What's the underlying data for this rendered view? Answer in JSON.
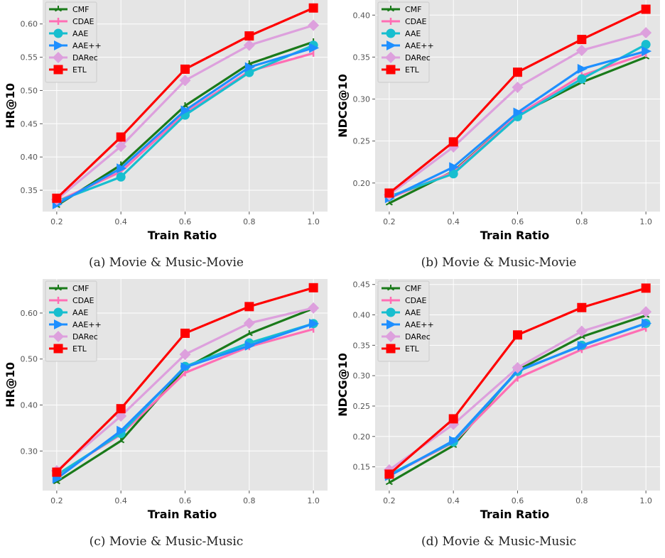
{
  "colors": {
    "CMF": "#1a7a1a",
    "CDAE": "#ff6eb4",
    "AAE": "#17becf",
    "AAE++": "#1e8fff",
    "DARec": "#dda0dd",
    "ETL": "#ff0000",
    "background": "#e5e5e5",
    "grid": "#ffffff"
  },
  "chart_data": [
    {
      "type": "line",
      "caption": "(a) Movie & Music-Movie",
      "xlabel": "Train Ratio",
      "ylabel": "HR@10",
      "x": [
        0.2,
        0.4,
        0.6,
        0.8,
        1.0
      ],
      "x_ticks": [
        "0.2",
        "0.4",
        "0.6",
        "0.8",
        "1.0"
      ],
      "y_ticks": [
        "0.35",
        "0.40",
        "0.45",
        "0.50",
        "0.55",
        "0.60"
      ],
      "y_tick_values": [
        0.35,
        0.4,
        0.45,
        0.5,
        0.55,
        0.6
      ],
      "ylim": [
        0.318,
        0.636
      ],
      "legend_position": "top-left",
      "grid": true,
      "series": [
        {
          "name": "CMF",
          "values": [
            0.327,
            0.388,
            0.477,
            0.54,
            0.573
          ]
        },
        {
          "name": "CDAE",
          "values": [
            0.333,
            0.378,
            0.466,
            0.529,
            0.556
          ]
        },
        {
          "name": "AAE",
          "values": [
            0.333,
            0.37,
            0.463,
            0.527,
            0.568
          ]
        },
        {
          "name": "AAE++",
          "values": [
            0.329,
            0.383,
            0.47,
            0.535,
            0.564
          ]
        },
        {
          "name": "DARec",
          "values": [
            0.336,
            0.416,
            0.515,
            0.568,
            0.598
          ]
        },
        {
          "name": "ETL",
          "values": [
            0.338,
            0.43,
            0.532,
            0.582,
            0.624
          ]
        }
      ]
    },
    {
      "type": "line",
      "caption": "(b) Movie & Music-Movie",
      "xlabel": "Train Ratio",
      "ylabel": "NDCG@10",
      "x": [
        0.2,
        0.4,
        0.6,
        0.8,
        1.0
      ],
      "x_ticks": [
        "0.2",
        "0.4",
        "0.6",
        "0.8",
        "1.0"
      ],
      "y_ticks": [
        "0.20",
        "0.25",
        "0.30",
        "0.35",
        "0.40"
      ],
      "y_tick_values": [
        0.2,
        0.25,
        0.3,
        0.35,
        0.4
      ],
      "ylim": [
        0.166,
        0.418
      ],
      "legend_position": "top-left",
      "grid": true,
      "series": [
        {
          "name": "CMF",
          "values": [
            0.176,
            0.214,
            0.281,
            0.32,
            0.35
          ]
        },
        {
          "name": "CDAE",
          "values": [
            0.182,
            0.213,
            0.281,
            0.328,
            0.354
          ]
        },
        {
          "name": "AAE",
          "values": [
            0.184,
            0.211,
            0.279,
            0.324,
            0.365
          ]
        },
        {
          "name": "AAE++",
          "values": [
            0.182,
            0.219,
            0.284,
            0.336,
            0.357
          ]
        },
        {
          "name": "DARec",
          "values": [
            0.186,
            0.243,
            0.314,
            0.358,
            0.379
          ]
        },
        {
          "name": "ETL",
          "values": [
            0.188,
            0.249,
            0.332,
            0.371,
            0.407
          ]
        }
      ]
    },
    {
      "type": "line",
      "caption": "(c) Movie & Music-Music",
      "xlabel": "Train Ratio",
      "ylabel": "HR@10",
      "x": [
        0.2,
        0.4,
        0.6,
        0.8,
        1.0
      ],
      "x_ticks": [
        "0.2",
        "0.4",
        "0.6",
        "0.8",
        "1.0"
      ],
      "y_ticks": [
        "0.30",
        "0.40",
        "0.50",
        "0.60"
      ],
      "y_tick_values": [
        0.3,
        0.4,
        0.5,
        0.6
      ],
      "ylim": [
        0.214,
        0.674
      ],
      "legend_position": "top-left",
      "grid": true,
      "series": [
        {
          "name": "CMF",
          "values": [
            0.233,
            0.322,
            0.48,
            0.555,
            0.61
          ]
        },
        {
          "name": "CDAE",
          "values": [
            0.248,
            0.336,
            0.47,
            0.527,
            0.565
          ]
        },
        {
          "name": "AAE",
          "values": [
            0.248,
            0.338,
            0.484,
            0.535,
            0.577
          ]
        },
        {
          "name": "AAE++",
          "values": [
            0.24,
            0.344,
            0.482,
            0.529,
            0.577
          ]
        },
        {
          "name": "DARec",
          "values": [
            0.257,
            0.376,
            0.51,
            0.578,
            0.611
          ]
        },
        {
          "name": "ETL",
          "values": [
            0.254,
            0.392,
            0.556,
            0.614,
            0.655
          ]
        }
      ]
    },
    {
      "type": "line",
      "caption": "(d) Movie & Music-Music",
      "xlabel": "Train Ratio",
      "ylabel": "NDCG@10",
      "x": [
        0.2,
        0.4,
        0.6,
        0.8,
        1.0
      ],
      "x_ticks": [
        "0.2",
        "0.4",
        "0.6",
        "0.8",
        "1.0"
      ],
      "y_ticks": [
        "0.15",
        "0.20",
        "0.25",
        "0.30",
        "0.35",
        "0.40",
        "0.45"
      ],
      "y_tick_values": [
        0.15,
        0.2,
        0.25,
        0.3,
        0.35,
        0.4,
        0.45
      ],
      "ylim": [
        0.111,
        0.459
      ],
      "legend_position": "top-left",
      "grid": true,
      "series": [
        {
          "name": "CMF",
          "values": [
            0.124,
            0.185,
            0.309,
            0.364,
            0.399
          ]
        },
        {
          "name": "CDAE",
          "values": [
            0.136,
            0.19,
            0.296,
            0.343,
            0.378
          ]
        },
        {
          "name": "AAE",
          "values": [
            0.137,
            0.191,
            0.307,
            0.35,
            0.386
          ]
        },
        {
          "name": "AAE++",
          "values": [
            0.135,
            0.193,
            0.308,
            0.349,
            0.386
          ]
        },
        {
          "name": "DARec",
          "values": [
            0.145,
            0.22,
            0.313,
            0.373,
            0.405
          ]
        },
        {
          "name": "ETL",
          "values": [
            0.138,
            0.229,
            0.367,
            0.412,
            0.444
          ]
        }
      ]
    }
  ]
}
